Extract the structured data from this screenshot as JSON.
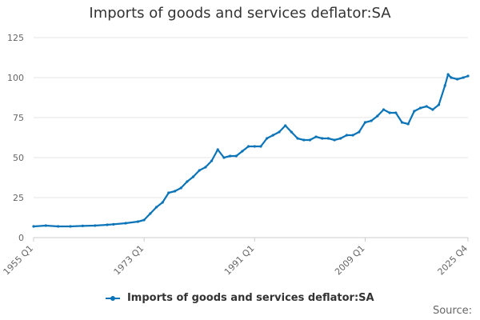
{
  "chart_data": {
    "type": "line",
    "title": "Imports of goods and services deflator:SA",
    "xlabel": "",
    "ylabel": "",
    "x_ticks": [
      "1955 Q1",
      "1973 Q1",
      "1991 Q1",
      "2009 Q1",
      "2025 Q4"
    ],
    "x_range": [
      "1955 Q1",
      "2025 Q4"
    ],
    "ylim": [
      0,
      125
    ],
    "y_ticks": [
      0,
      25,
      50,
      75,
      100,
      125
    ],
    "grid": true,
    "legend_position": "bottom",
    "series": [
      {
        "name": "Imports of goods and services deflator:SA",
        "color": "#0b74b8",
        "points": [
          [
            "1955 Q1",
            7.0
          ],
          [
            "1957 Q1",
            7.5
          ],
          [
            "1959 Q1",
            7.0
          ],
          [
            "1961 Q1",
            7.0
          ],
          [
            "1963 Q1",
            7.3
          ],
          [
            "1965 Q1",
            7.5
          ],
          [
            "1967 Q1",
            8.0
          ],
          [
            "1968 Q1",
            8.3
          ],
          [
            "1970 Q1",
            9.0
          ],
          [
            "1972 Q1",
            10.0
          ],
          [
            "1973 Q1",
            11.0
          ],
          [
            "1974 Q1",
            15.0
          ],
          [
            "1975 Q1",
            19.0
          ],
          [
            "1976 Q1",
            22.0
          ],
          [
            "1977 Q1",
            28.0
          ],
          [
            "1978 Q1",
            29.0
          ],
          [
            "1979 Q1",
            31.0
          ],
          [
            "1980 Q1",
            35.0
          ],
          [
            "1981 Q1",
            38.0
          ],
          [
            "1982 Q1",
            42.0
          ],
          [
            "1983 Q1",
            44.0
          ],
          [
            "1984 Q1",
            48.0
          ],
          [
            "1985 Q1",
            55.0
          ],
          [
            "1986 Q1",
            50.0
          ],
          [
            "1987 Q1",
            51.0
          ],
          [
            "1988 Q1",
            51.0
          ],
          [
            "1989 Q1",
            54.0
          ],
          [
            "1990 Q1",
            57.0
          ],
          [
            "1991 Q1",
            57.0
          ],
          [
            "1992 Q1",
            57.0
          ],
          [
            "1993 Q1",
            62.0
          ],
          [
            "1994 Q1",
            64.0
          ],
          [
            "1995 Q1",
            66.0
          ],
          [
            "1996 Q1",
            70.0
          ],
          [
            "1997 Q1",
            66.0
          ],
          [
            "1998 Q1",
            62.0
          ],
          [
            "1999 Q1",
            61.0
          ],
          [
            "2000 Q1",
            61.0
          ],
          [
            "2001 Q1",
            63.0
          ],
          [
            "2002 Q1",
            62.0
          ],
          [
            "2003 Q1",
            62.0
          ],
          [
            "2004 Q1",
            61.0
          ],
          [
            "2005 Q1",
            62.0
          ],
          [
            "2006 Q1",
            64.0
          ],
          [
            "2007 Q1",
            64.0
          ],
          [
            "2008 Q1",
            66.0
          ],
          [
            "2009 Q1",
            72.0
          ],
          [
            "2010 Q1",
            73.0
          ],
          [
            "2011 Q1",
            76.0
          ],
          [
            "2012 Q1",
            80.0
          ],
          [
            "2013 Q1",
            78.0
          ],
          [
            "2014 Q1",
            78.0
          ],
          [
            "2015 Q1",
            72.0
          ],
          [
            "2016 Q1",
            71.0
          ],
          [
            "2017 Q1",
            79.0
          ],
          [
            "2018 Q1",
            81.0
          ],
          [
            "2019 Q1",
            82.0
          ],
          [
            "2020 Q1",
            80.0
          ],
          [
            "2021 Q1",
            83.0
          ],
          [
            "2022 Q1",
            95.0
          ],
          [
            "2022 Q3",
            102.0
          ],
          [
            "2023 Q1",
            100.0
          ],
          [
            "2024 Q1",
            99.0
          ],
          [
            "2025 Q1",
            100.0
          ],
          [
            "2025 Q4",
            101.0
          ]
        ]
      }
    ]
  },
  "source_label": "Source:"
}
